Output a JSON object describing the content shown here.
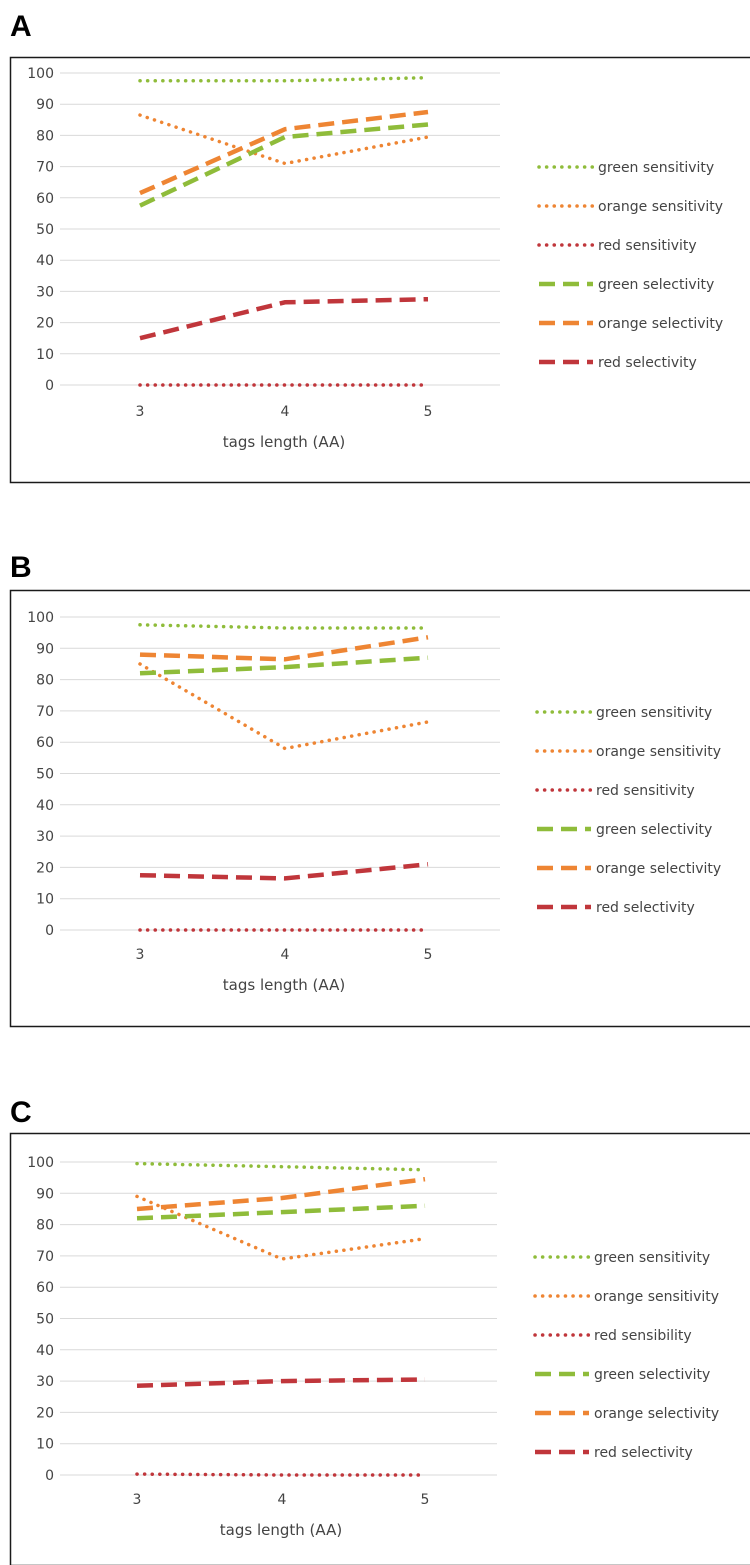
{
  "panels": [
    {
      "letter": "A",
      "chart_data": {
        "type": "line",
        "title": "",
        "x": [
          "3",
          "4",
          "5"
        ],
        "xlabel": "tags length (AA)",
        "ylabel": "",
        "ylim": [
          0,
          100
        ],
        "yticks": [
          0,
          10,
          20,
          30,
          40,
          50,
          60,
          70,
          80,
          90,
          100
        ],
        "grid": true,
        "legend_position": "right",
        "series": [
          {
            "name": "green sensitivity",
            "color": "#8fbc3a",
            "style": "dotted",
            "values": [
              97.5,
              97.5,
              98.5
            ]
          },
          {
            "name": "orange sensitivity",
            "color": "#ee8533",
            "style": "dotted",
            "values": [
              86.5,
              71,
              79.5
            ]
          },
          {
            "name": "red sensitivity",
            "color": "#c0363b",
            "style": "dotted",
            "values": [
              0,
              0,
              0
            ]
          },
          {
            "name": "green selectivity",
            "color": "#8fbc3a",
            "style": "dashed",
            "values": [
              57.5,
              79.5,
              83.5
            ]
          },
          {
            "name": "orange selectivity",
            "color": "#ee8533",
            "style": "dashed",
            "values": [
              61.5,
              82,
              87.5
            ]
          },
          {
            "name": "red selectivity",
            "color": "#c0363b",
            "style": "dashed",
            "values": [
              15,
              26.5,
              27.5
            ]
          }
        ]
      }
    },
    {
      "letter": "B",
      "chart_data": {
        "type": "line",
        "title": "",
        "x": [
          "3",
          "4",
          "5"
        ],
        "xlabel": "tags length (AA)",
        "ylabel": "",
        "ylim": [
          0,
          100
        ],
        "yticks": [
          0,
          10,
          20,
          30,
          40,
          50,
          60,
          70,
          80,
          90,
          100
        ],
        "grid": true,
        "legend_position": "right",
        "series": [
          {
            "name": "green sensitivity",
            "color": "#8fbc3a",
            "style": "dotted",
            "values": [
              97.5,
              96.5,
              96.5
            ]
          },
          {
            "name": "orange sensitivity",
            "color": "#ee8533",
            "style": "dotted",
            "values": [
              85,
              58,
              66.5
            ]
          },
          {
            "name": "red sensitivity",
            "color": "#c0363b",
            "style": "dotted",
            "values": [
              0,
              0,
              0
            ]
          },
          {
            "name": "green selectivity",
            "color": "#8fbc3a",
            "style": "dashed",
            "values": [
              82,
              84,
              87
            ]
          },
          {
            "name": "orange selectivity",
            "color": "#ee8533",
            "style": "dashed",
            "values": [
              88,
              86.5,
              93.5
            ]
          },
          {
            "name": "red selectivity",
            "color": "#c0363b",
            "style": "dashed",
            "values": [
              17.5,
              16.5,
              21
            ]
          }
        ]
      }
    },
    {
      "letter": "C",
      "chart_data": {
        "type": "line",
        "title": "",
        "x": [
          "3",
          "4",
          "5"
        ],
        "xlabel": "tags length (AA)",
        "ylabel": "",
        "ylim": [
          0,
          100
        ],
        "yticks": [
          0,
          10,
          20,
          30,
          40,
          50,
          60,
          70,
          80,
          90,
          100
        ],
        "grid": true,
        "legend_position": "right",
        "series": [
          {
            "name": "green sensitivity",
            "color": "#8fbc3a",
            "style": "dotted",
            "values": [
              99.5,
              98.5,
              97.5
            ]
          },
          {
            "name": "orange sensitivity",
            "color": "#ee8533",
            "style": "dotted",
            "values": [
              89,
              69,
              75.5
            ]
          },
          {
            "name": "red sensibility",
            "color": "#c0363b",
            "style": "dotted",
            "values": [
              0.3,
              0,
              0
            ]
          },
          {
            "name": "green selectivity",
            "color": "#8fbc3a",
            "style": "dashed",
            "values": [
              82,
              84,
              86
            ]
          },
          {
            "name": "orange selectivity",
            "color": "#ee8533",
            "style": "dashed",
            "values": [
              85,
              88.5,
              94.5
            ]
          },
          {
            "name": "red selectivity",
            "color": "#c0363b",
            "style": "dashed",
            "values": [
              28.5,
              30,
              30.5
            ]
          }
        ]
      }
    }
  ]
}
